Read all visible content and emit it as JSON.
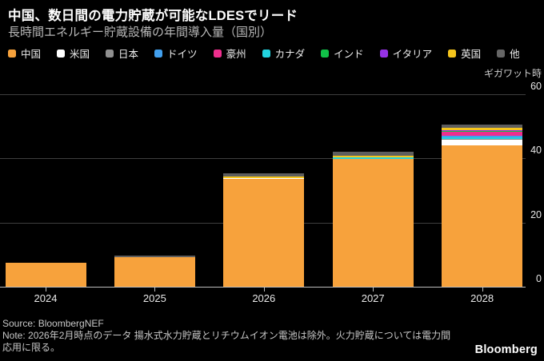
{
  "header": {
    "title": "中国、数日間の電力貯蔵が可能なLDESでリード",
    "subtitle": "長時間エネルギー貯蔵設備の年間導入量（国別）"
  },
  "legend": {
    "items": [
      {
        "label": "中国",
        "color": "#F7A23C"
      },
      {
        "label": "米国",
        "color": "#FFFFFF"
      },
      {
        "label": "日本",
        "color": "#909090"
      },
      {
        "label": "ドイツ",
        "color": "#42A0EE"
      },
      {
        "label": "豪州",
        "color": "#EE2F8E"
      },
      {
        "label": "カナダ",
        "color": "#22D3DF"
      },
      {
        "label": "インド",
        "color": "#11C148"
      },
      {
        "label": "イタリア",
        "color": "#9632E6"
      },
      {
        "label": "英国",
        "color": "#F5C51C"
      },
      {
        "label": "他",
        "color": "#666666"
      }
    ]
  },
  "chart_data": {
    "type": "bar",
    "stacked": true,
    "stack_order": "bottom-to-top",
    "title": "中国、数日間の電力貯蔵が可能なLDESでリード",
    "subtitle": "長時間エネルギー貯蔵設備の年間導入量（国別）",
    "xlabel": "",
    "ylabel": "ギガワット時",
    "ylim": [
      0,
      60
    ],
    "yticks": [
      0,
      20,
      40,
      60
    ],
    "grid": "horizontal",
    "legend_position": "top",
    "categories": [
      "2024",
      "2025",
      "2026",
      "2027",
      "2028"
    ],
    "series": [
      {
        "name": "中国",
        "color": "#F7A23C",
        "values": [
          7.4,
          9.3,
          33.6,
          39.8,
          44.0
        ]
      },
      {
        "name": "米国",
        "color": "#FFFFFF",
        "values": [
          0,
          0,
          0.3,
          0,
          1.8
        ]
      },
      {
        "name": "日本",
        "color": "#909090",
        "values": [
          0,
          0,
          0,
          0,
          0.2
        ]
      },
      {
        "name": "カナダ",
        "color": "#22D3DF",
        "values": [
          0,
          0,
          0,
          0.5,
          0.5
        ]
      },
      {
        "name": "ドイツ",
        "color": "#42A0EE",
        "values": [
          0,
          0,
          0,
          0,
          0.6
        ]
      },
      {
        "name": "豪州",
        "color": "#EE2F8E",
        "values": [
          0,
          0,
          0,
          0,
          1.2
        ]
      },
      {
        "name": "インド",
        "color": "#11C148",
        "values": [
          0,
          0,
          0,
          0,
          0.3
        ]
      },
      {
        "name": "イタリア",
        "color": "#9632E6",
        "values": [
          0,
          0,
          0,
          0,
          0.3
        ]
      },
      {
        "name": "英国",
        "color": "#F5C51C",
        "values": [
          0,
          0,
          0.5,
          0.4,
          0.8
        ]
      },
      {
        "name": "他",
        "color": "#5E5E5E",
        "values": [
          0,
          0.4,
          1.0,
          1.3,
          1.1
        ]
      }
    ],
    "totals": [
      7.4,
      9.7,
      35.4,
      42.0,
      50.8
    ]
  },
  "footer": {
    "source": "Source: BloombergNEF",
    "note": "Note: 2026年2月時点のデータ 揚水式水力貯蔵とリチウムイオン電池は除外。火力貯蔵については電力間応用に限る。",
    "logo": "Bloomberg"
  }
}
